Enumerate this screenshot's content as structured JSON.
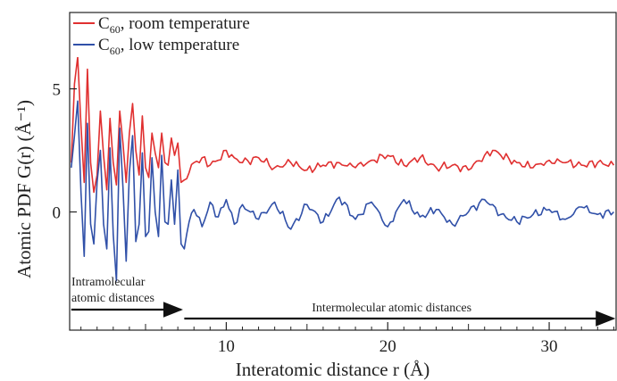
{
  "chart_data": {
    "type": "line",
    "xlabel": "Interatomic distance r (Å)",
    "ylabel": "Atomic PDF G(r) (Å⁻¹)",
    "xlim": [
      0.3,
      34.2
    ],
    "ylim": [
      -4.8,
      8.1
    ],
    "x_ticks": [
      10,
      20,
      30
    ],
    "y_ticks": [
      0,
      5
    ],
    "grid": false,
    "legend_position": "top-left",
    "series": [
      {
        "name": "C60, room temperature",
        "color": "#e03030",
        "x": [
          0.4,
          0.6,
          0.8,
          1.0,
          1.2,
          1.4,
          1.6,
          1.8,
          2.0,
          2.2,
          2.4,
          2.6,
          2.8,
          3.0,
          3.2,
          3.4,
          3.6,
          3.8,
          4.0,
          4.2,
          4.4,
          4.6,
          4.8,
          5.0,
          5.2,
          5.4,
          5.6,
          5.8,
          6.0,
          6.2,
          6.4,
          6.6,
          6.8,
          7.0,
          7.2,
          7.4,
          7.7,
          8.0,
          8.5,
          9.0,
          9.5,
          10.0,
          10.5,
          11.0,
          12.0,
          13.0,
          14.0,
          15.0,
          16.0,
          17.0,
          18.0,
          19.0,
          20.0,
          21.0,
          22.0,
          23.0,
          24.0,
          25.0,
          26.0,
          26.5,
          27.0,
          28.0,
          29.0,
          30.0,
          31.0,
          32.0,
          33.0,
          34.0
        ],
        "values": [
          2.0,
          5.2,
          6.3,
          3.5,
          1.2,
          5.8,
          2.0,
          0.8,
          1.5,
          4.1,
          2.3,
          0.9,
          3.8,
          2.0,
          1.1,
          4.1,
          2.8,
          1.2,
          3.2,
          4.4,
          2.5,
          1.5,
          3.9,
          1.8,
          1.4,
          3.2,
          2.4,
          1.8,
          3.2,
          2.0,
          1.9,
          3.0,
          2.3,
          2.8,
          1.2,
          1.3,
          1.6,
          2.0,
          2.2,
          1.9,
          2.1,
          2.5,
          2.2,
          2.0,
          2.2,
          1.8,
          2.0,
          1.7,
          1.9,
          2.0,
          1.8,
          2.1,
          2.3,
          1.9,
          2.2,
          1.8,
          1.9,
          1.7,
          2.3,
          2.5,
          2.3,
          2.0,
          1.8,
          2.1,
          2.0,
          1.9,
          2.0,
          1.9
        ]
      },
      {
        "name": "C60, low temperature",
        "color": "#3050a8",
        "x": [
          0.4,
          0.6,
          0.8,
          1.0,
          1.2,
          1.4,
          1.6,
          1.8,
          2.0,
          2.2,
          2.4,
          2.6,
          2.8,
          3.0,
          3.2,
          3.4,
          3.6,
          3.8,
          4.0,
          4.2,
          4.4,
          4.6,
          4.8,
          5.0,
          5.2,
          5.4,
          5.6,
          5.8,
          6.0,
          6.2,
          6.4,
          6.6,
          6.8,
          7.0,
          7.2,
          7.4,
          7.7,
          8.0,
          8.5,
          9.0,
          9.5,
          10.0,
          10.5,
          11.0,
          12.0,
          13.0,
          14.0,
          15.0,
          16.0,
          17.0,
          18.0,
          19.0,
          20.0,
          21.0,
          22.0,
          23.0,
          24.0,
          25.0,
          26.0,
          26.5,
          27.0,
          28.0,
          29.0,
          30.0,
          31.0,
          32.0,
          33.0,
          34.0
        ],
        "values": [
          1.8,
          3.1,
          4.5,
          0.8,
          -1.8,
          3.6,
          -0.5,
          -1.3,
          1.2,
          2.5,
          -0.5,
          -1.5,
          2.6,
          -0.9,
          -2.8,
          3.4,
          1.0,
          -2.0,
          1.6,
          3.1,
          -1.2,
          -0.5,
          2.4,
          -1.0,
          -0.8,
          2.2,
          0.0,
          -1.0,
          2.3,
          -0.4,
          -0.5,
          1.3,
          -0.5,
          1.7,
          -1.3,
          -1.5,
          -0.4,
          0.1,
          -0.6,
          0.4,
          -0.2,
          0.5,
          -0.5,
          0.3,
          -0.3,
          0.4,
          -0.7,
          0.3,
          -0.4,
          0.6,
          -0.3,
          0.4,
          -0.6,
          0.5,
          -0.2,
          0.1,
          -0.5,
          0.0,
          0.5,
          0.3,
          -0.1,
          -0.4,
          -0.1,
          0.1,
          -0.3,
          0.2,
          -0.1,
          0.0
        ]
      }
    ],
    "legend": [
      {
        "prefix": "C",
        "sub": "60",
        "suffix": ", room temperature",
        "color": "#e03030"
      },
      {
        "prefix": "C",
        "sub": "60",
        "suffix": ", low temperature",
        "color": "#3050a8"
      }
    ],
    "annotations": {
      "intramolecular_line1": "Intramolecular",
      "intramolecular_line2": "atomic distances",
      "intermolecular": "Intermolecular atomic distances",
      "intramolecular_range": [
        0.4,
        7.2
      ],
      "intermolecular_range": [
        7.4,
        34.2
      ]
    }
  }
}
